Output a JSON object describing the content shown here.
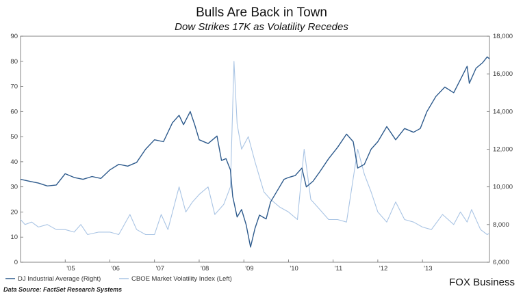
{
  "chart_data": {
    "type": "line",
    "title": "Bulls Are Back in Town",
    "subtitle": "Dow Strikes 17K as Volatility Recedes",
    "x_range": [
      2004.0,
      2014.5
    ],
    "x_ticks": [
      {
        "label": "'05",
        "x": 2005.0
      },
      {
        "label": "'06",
        "x": 2006.0
      },
      {
        "label": "'07",
        "x": 2007.0
      },
      {
        "label": "'08",
        "x": 2008.0
      },
      {
        "label": "'09",
        "x": 2009.0
      },
      {
        "label": "'10",
        "x": 2010.0
      },
      {
        "label": "'11",
        "x": 2011.0
      },
      {
        "label": "'12",
        "x": 2012.0
      },
      {
        "label": "'13",
        "x": 2013.0
      }
    ],
    "y_left": {
      "min": 0,
      "max": 90,
      "ticks": [
        0,
        10,
        20,
        30,
        40,
        50,
        60,
        70,
        80,
        90
      ]
    },
    "y_right": {
      "min": 6000,
      "max": 18000,
      "ticks": [
        "6,000",
        "8,000",
        "10,000",
        "12,000",
        "14,000",
        "16,000",
        "18,000"
      ],
      "tick_values": [
        6000,
        8000,
        10000,
        12000,
        14000,
        16000,
        18000
      ]
    },
    "grid": false,
    "legend_position": "bottom-left",
    "series": [
      {
        "name": "DJ Industrial Average (Right)",
        "axis": "right",
        "color": "#2d5a8c",
        "points": [
          [
            2004.0,
            10400
          ],
          [
            2004.2,
            10300
          ],
          [
            2004.4,
            10200
          ],
          [
            2004.6,
            10050
          ],
          [
            2004.8,
            10100
          ],
          [
            2005.0,
            10700
          ],
          [
            2005.2,
            10500
          ],
          [
            2005.4,
            10400
          ],
          [
            2005.6,
            10550
          ],
          [
            2005.8,
            10450
          ],
          [
            2006.0,
            10900
          ],
          [
            2006.2,
            11200
          ],
          [
            2006.4,
            11100
          ],
          [
            2006.6,
            11300
          ],
          [
            2006.8,
            12000
          ],
          [
            2007.0,
            12500
          ],
          [
            2007.2,
            12400
          ],
          [
            2007.4,
            13400
          ],
          [
            2007.55,
            13800
          ],
          [
            2007.65,
            13300
          ],
          [
            2007.8,
            14000
          ],
          [
            2007.9,
            13300
          ],
          [
            2008.0,
            12500
          ],
          [
            2008.2,
            12300
          ],
          [
            2008.4,
            12700
          ],
          [
            2008.5,
            11400
          ],
          [
            2008.6,
            11500
          ],
          [
            2008.7,
            10900
          ],
          [
            2008.75,
            9500
          ],
          [
            2008.85,
            8400
          ],
          [
            2008.95,
            8800
          ],
          [
            2009.05,
            8000
          ],
          [
            2009.15,
            6800
          ],
          [
            2009.25,
            7800
          ],
          [
            2009.35,
            8500
          ],
          [
            2009.5,
            8300
          ],
          [
            2009.6,
            9200
          ],
          [
            2009.75,
            9800
          ],
          [
            2009.9,
            10400
          ],
          [
            2010.0,
            10500
          ],
          [
            2010.15,
            10600
          ],
          [
            2010.3,
            11000
          ],
          [
            2010.4,
            10000
          ],
          [
            2010.55,
            10300
          ],
          [
            2010.7,
            10800
          ],
          [
            2010.9,
            11500
          ],
          [
            2011.1,
            12100
          ],
          [
            2011.3,
            12800
          ],
          [
            2011.45,
            12400
          ],
          [
            2011.55,
            11000
          ],
          [
            2011.7,
            11200
          ],
          [
            2011.85,
            12000
          ],
          [
            2012.0,
            12400
          ],
          [
            2012.2,
            13200
          ],
          [
            2012.4,
            12500
          ],
          [
            2012.6,
            13100
          ],
          [
            2012.8,
            12900
          ],
          [
            2012.95,
            13100
          ],
          [
            2013.1,
            14000
          ],
          [
            2013.3,
            14800
          ],
          [
            2013.5,
            15300
          ],
          [
            2013.7,
            15000
          ],
          [
            2013.85,
            15700
          ],
          [
            2014.0,
            16400
          ],
          [
            2014.05,
            15500
          ],
          [
            2014.2,
            16300
          ],
          [
            2014.35,
            16600
          ],
          [
            2014.45,
            16900
          ],
          [
            2014.5,
            16800
          ]
        ]
      },
      {
        "name": "CBOE Market Volatility Index (Left)",
        "axis": "left",
        "color": "#a9c4e4",
        "points": [
          [
            2004.0,
            17
          ],
          [
            2004.1,
            15
          ],
          [
            2004.25,
            16
          ],
          [
            2004.4,
            14
          ],
          [
            2004.6,
            15
          ],
          [
            2004.8,
            13
          ],
          [
            2005.0,
            13
          ],
          [
            2005.2,
            12
          ],
          [
            2005.35,
            15
          ],
          [
            2005.5,
            11
          ],
          [
            2005.75,
            12
          ],
          [
            2006.0,
            12
          ],
          [
            2006.2,
            11
          ],
          [
            2006.45,
            19
          ],
          [
            2006.6,
            13
          ],
          [
            2006.8,
            11
          ],
          [
            2007.0,
            11
          ],
          [
            2007.15,
            19
          ],
          [
            2007.3,
            13
          ],
          [
            2007.55,
            30
          ],
          [
            2007.7,
            20
          ],
          [
            2007.85,
            24
          ],
          [
            2008.0,
            27
          ],
          [
            2008.2,
            30
          ],
          [
            2008.35,
            19
          ],
          [
            2008.55,
            23
          ],
          [
            2008.7,
            30
          ],
          [
            2008.78,
            80
          ],
          [
            2008.85,
            55
          ],
          [
            2008.95,
            45
          ],
          [
            2009.1,
            50
          ],
          [
            2009.25,
            40
          ],
          [
            2009.45,
            28
          ],
          [
            2009.6,
            25
          ],
          [
            2009.8,
            22
          ],
          [
            2010.0,
            20
          ],
          [
            2010.2,
            17
          ],
          [
            2010.35,
            45
          ],
          [
            2010.5,
            25
          ],
          [
            2010.7,
            21
          ],
          [
            2010.9,
            17
          ],
          [
            2011.1,
            17
          ],
          [
            2011.3,
            16
          ],
          [
            2011.55,
            45
          ],
          [
            2011.7,
            35
          ],
          [
            2011.85,
            28
          ],
          [
            2012.0,
            20
          ],
          [
            2012.2,
            16
          ],
          [
            2012.4,
            24
          ],
          [
            2012.6,
            17
          ],
          [
            2012.8,
            16
          ],
          [
            2013.0,
            14
          ],
          [
            2013.2,
            13
          ],
          [
            2013.45,
            19
          ],
          [
            2013.7,
            15
          ],
          [
            2013.85,
            20
          ],
          [
            2014.0,
            16
          ],
          [
            2014.1,
            21
          ],
          [
            2014.3,
            13
          ],
          [
            2014.45,
            11
          ],
          [
            2014.5,
            11.5
          ]
        ]
      }
    ]
  },
  "legend": {
    "items": [
      {
        "label": "DJ Industrial Average (Right)",
        "color": "#2d5a8c"
      },
      {
        "label": "CBOE Market Volatility Index (Left)",
        "color": "#a9c4e4"
      }
    ]
  },
  "footer": {
    "source": "Data Source: FactSet Research Systems",
    "brand": "FOX Business"
  }
}
